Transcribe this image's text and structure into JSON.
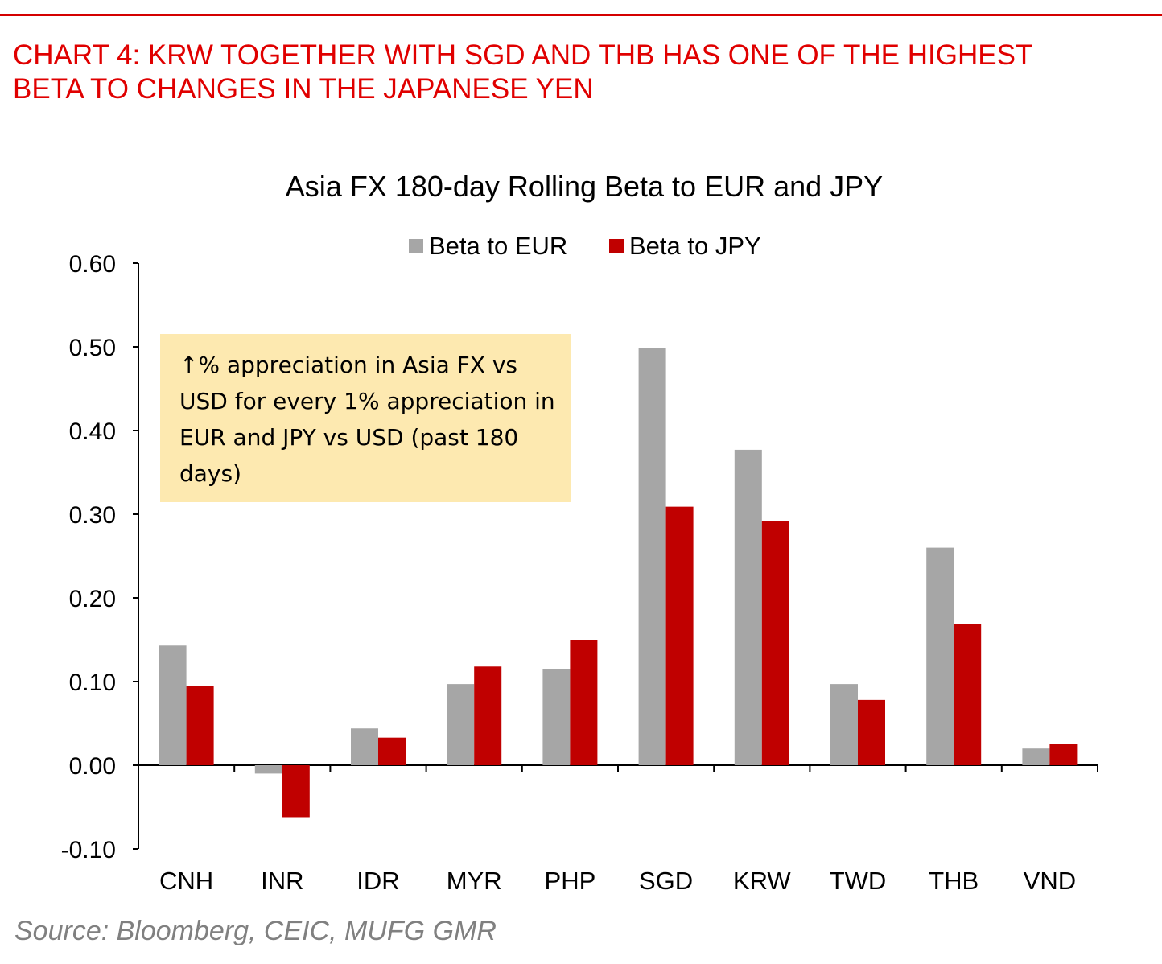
{
  "header": {
    "line1": "CHART 4: KRW TOGETHER WITH SGD AND THB HAS ONE OF THE HIGHEST",
    "line2": "BETA TO CHANGES IN THE JAPANESE YEN"
  },
  "note": "↑% appreciation in Asia FX vs USD for every 1% appreciation in EUR and JPY vs USD (past 180 days)",
  "source": "Source: Bloomberg, CEIC, MUFG GMR",
  "colors": {
    "eur": "#a6a6a6",
    "jpy": "#c00000",
    "heading": "#e00000",
    "note_bg": "#fde9b0"
  },
  "chart_data": {
    "type": "bar",
    "title": "Asia FX 180-day Rolling Beta to EUR and JPY",
    "categories": [
      "CNH",
      "INR",
      "IDR",
      "MYR",
      "PHP",
      "SGD",
      "KRW",
      "TWD",
      "THB",
      "VND"
    ],
    "series": [
      {
        "name": "Beta to EUR",
        "values": [
          0.143,
          -0.01,
          0.044,
          0.097,
          0.115,
          0.499,
          0.377,
          0.097,
          0.26,
          0.02
        ]
      },
      {
        "name": "Beta to JPY",
        "values": [
          0.095,
          -0.062,
          0.033,
          0.118,
          0.15,
          0.309,
          0.292,
          0.078,
          0.169,
          0.025
        ]
      }
    ],
    "ylim": [
      -0.1,
      0.6
    ],
    "yticks": [
      "-0.10",
      "0.00",
      "0.10",
      "0.20",
      "0.30",
      "0.40",
      "0.50",
      "0.60"
    ],
    "xlabel": "",
    "ylabel": "",
    "legend": "top-center"
  }
}
